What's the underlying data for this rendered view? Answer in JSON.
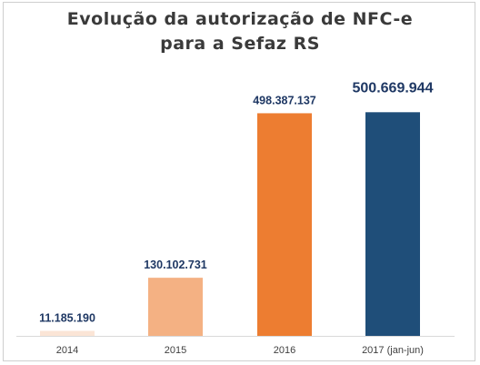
{
  "chart_data": {
    "type": "bar",
    "title_line1": "Evolução da autorização de NFC-e",
    "title_line2": "para a Sefaz RS",
    "categories": [
      "2014",
      "2015",
      "2016",
      "2017 (jan-jun)"
    ],
    "values": [
      11185190,
      130102731,
      498387137,
      500669944
    ],
    "data_labels": [
      "11.185.190",
      "130.102.731",
      "498.387.137",
      "500.669.944"
    ],
    "colors": [
      "#fbe5d6",
      "#f4b183",
      "#ed7d31",
      "#1f4e79"
    ],
    "label_color": "#1f3864",
    "grid": false,
    "legend": "none",
    "ylim": [
      0,
      540000000
    ]
  }
}
